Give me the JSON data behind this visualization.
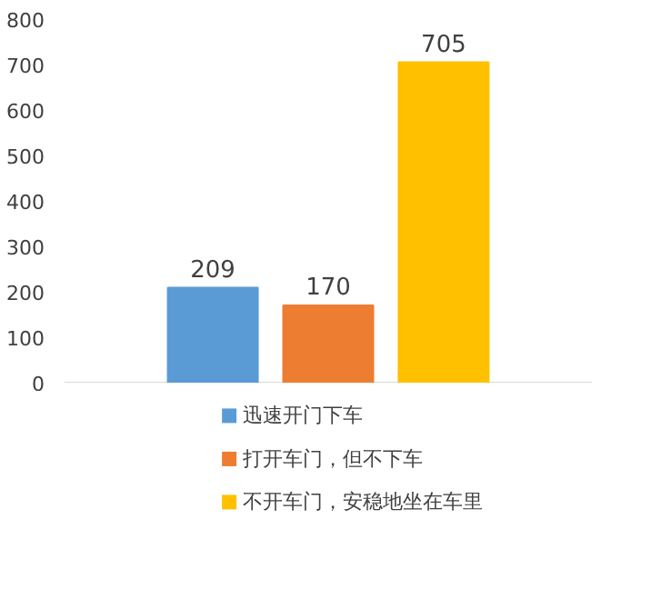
{
  "chart_data": {
    "type": "bar",
    "categories": [
      null
    ],
    "series": [
      {
        "name": "迅速开门下车",
        "color": "#5b9bd5",
        "values": [
          209
        ]
      },
      {
        "name": "打开车门，但不下车",
        "color": "#ed7d31",
        "values": [
          170
        ]
      },
      {
        "name": "不开车门，安稳地坐在车里",
        "color": "#ffc000",
        "values": [
          705
        ]
      }
    ],
    "ylim": [
      0,
      800
    ],
    "yticks": [
      0,
      100,
      200,
      300,
      400,
      500,
      600,
      700,
      800
    ],
    "data_labels": true,
    "legend": "bottom"
  }
}
